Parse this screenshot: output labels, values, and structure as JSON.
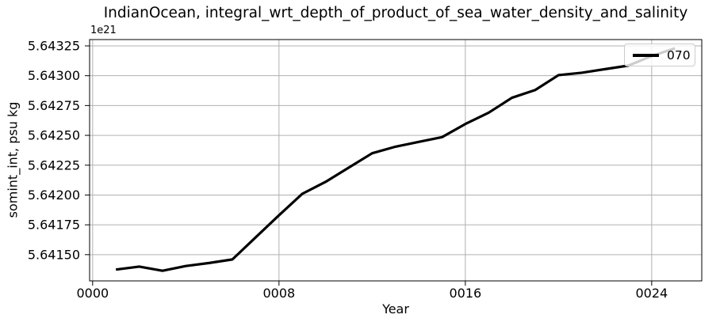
{
  "figure": {
    "title": "IndianOcean, integral_wrt_depth_of_product_of_sea_water_density_and_salinity",
    "offset_text": "1e21",
    "xlabel": "Year",
    "ylabel": "somint_int, psu kg"
  },
  "legend": {
    "label": "070"
  },
  "colors": {
    "line": "#000000",
    "grid": "#b0b0b0",
    "spine": "#000000",
    "text": "#000000",
    "background": "#ffffff",
    "legend_background": "rgba(255,255,255,0.8)",
    "legend_border": "#cccccc"
  },
  "chart_data": {
    "type": "line",
    "title": "IndianOcean, integral_wrt_depth_of_product_of_sea_water_density_and_salinity",
    "xlabel": "Year",
    "ylabel": "somint_int, psu kg",
    "y_offset_factor": "1e21",
    "grid": true,
    "legend_position": "upper right",
    "xlim": [
      -0.13,
      26.15
    ],
    "ylim": [
      5.64128,
      5.643303
    ],
    "xticks": {
      "values": [
        0,
        8,
        16,
        24
      ],
      "labels": [
        "0000",
        "0008",
        "0016",
        "0024"
      ]
    },
    "yticks": {
      "values": [
        5.6415,
        5.64175,
        5.642,
        5.64225,
        5.6425,
        5.64275,
        5.643,
        5.64325
      ],
      "labels": [
        "5.64150",
        "5.64175",
        "5.64200",
        "5.64225",
        "5.64250",
        "5.64275",
        "5.64300",
        "5.64325"
      ]
    },
    "series": [
      {
        "name": "070",
        "color": "#000000",
        "linewidth": 3.2,
        "x": [
          1,
          2,
          3,
          4,
          5,
          6,
          7,
          8,
          9,
          10,
          11,
          12,
          13,
          14,
          15,
          16,
          17,
          18,
          19,
          20,
          21,
          22,
          23,
          24,
          25
        ],
        "y": [
          5.641375,
          5.6414,
          5.641365,
          5.641405,
          5.64143,
          5.64146,
          5.641645,
          5.64183,
          5.64201,
          5.64211,
          5.64223,
          5.64235,
          5.642405,
          5.642445,
          5.642485,
          5.642595,
          5.64269,
          5.642815,
          5.64288,
          5.643005,
          5.643025,
          5.643055,
          5.643085,
          5.643165,
          5.64323
        ]
      }
    ]
  }
}
